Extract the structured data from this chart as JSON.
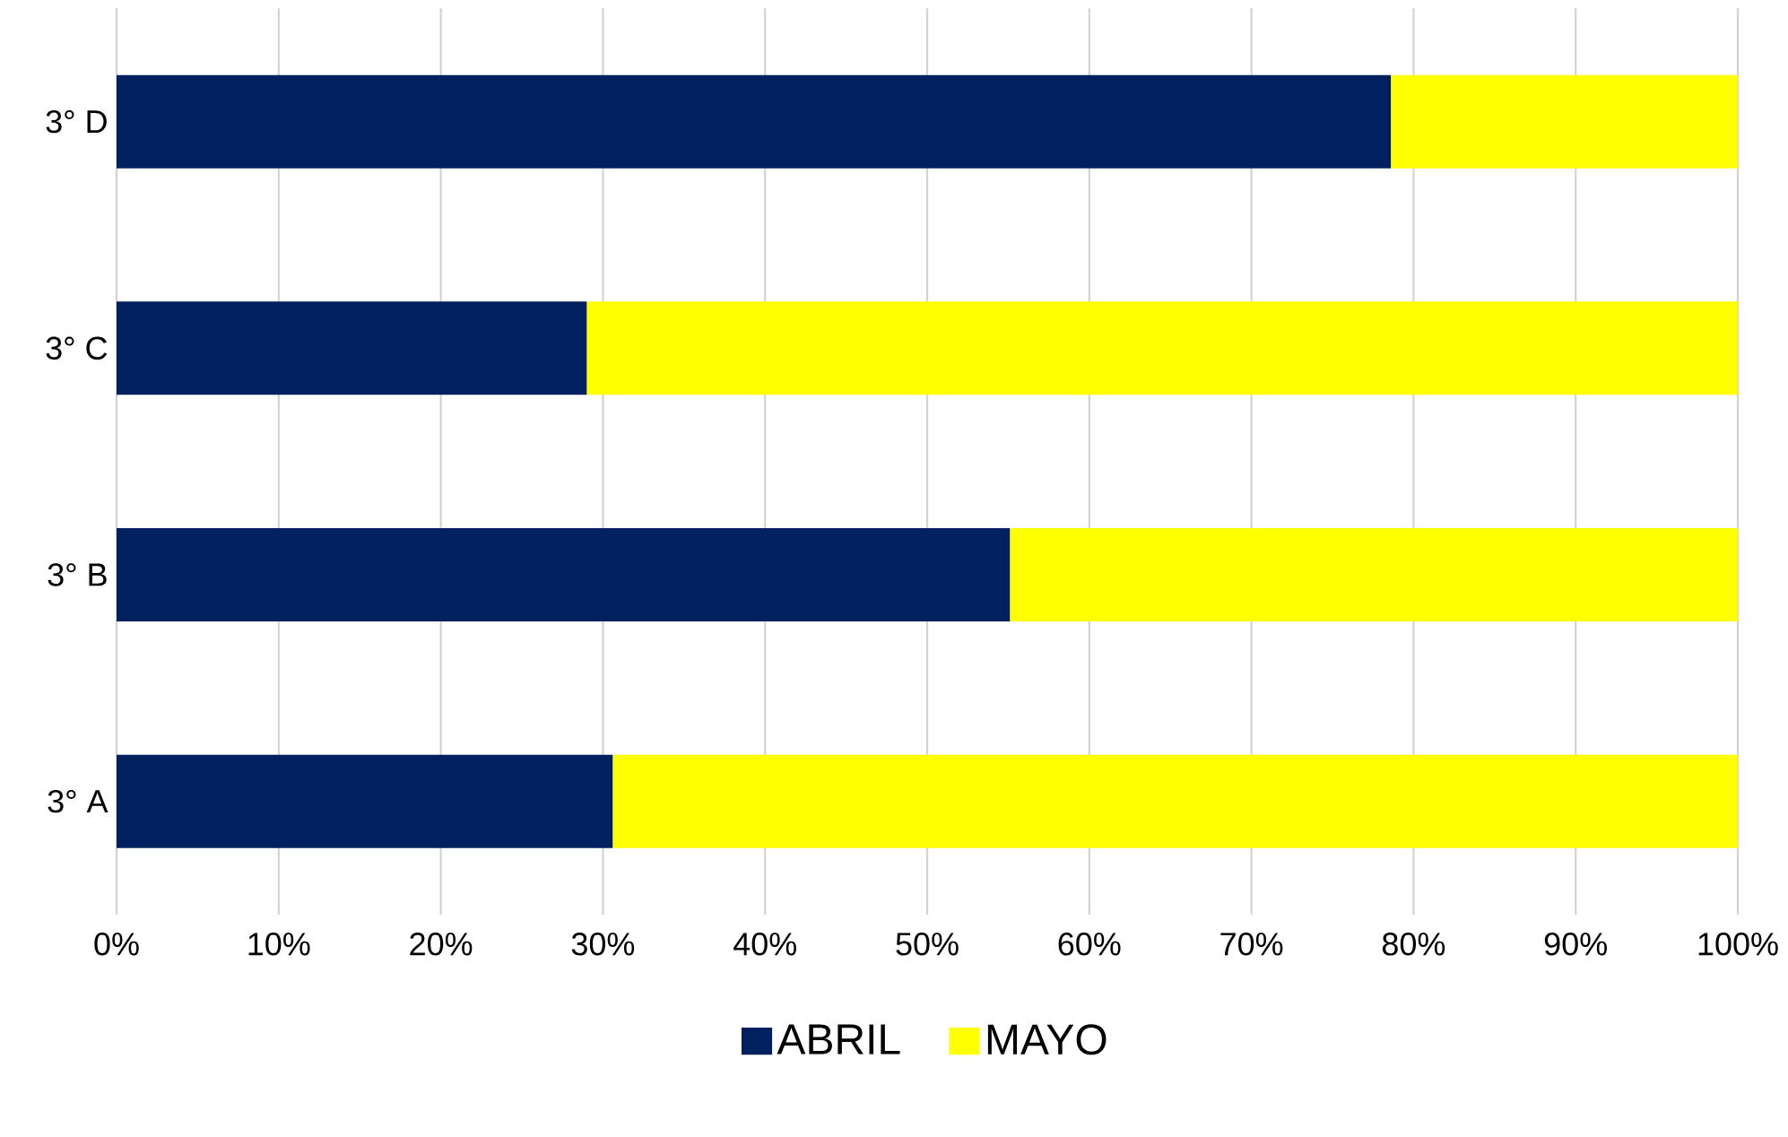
{
  "chart_data": {
    "type": "bar",
    "orientation": "horizontal",
    "stacked": true,
    "categories": [
      "3° D",
      "3° C",
      "3° B",
      "3° A"
    ],
    "series": [
      {
        "name": "ABRIL",
        "color": "#002060",
        "values": [
          78.6,
          29.0,
          55.1,
          30.6
        ]
      },
      {
        "name": "MAYO",
        "color": "#ffff00",
        "values": [
          21.4,
          71.0,
          44.9,
          69.4
        ]
      }
    ],
    "xlim": [
      0,
      100
    ],
    "xticks": [
      {
        "value": 0,
        "label": "0%"
      },
      {
        "value": 10,
        "label": "10%"
      },
      {
        "value": 20,
        "label": "20%"
      },
      {
        "value": 30,
        "label": "30%"
      },
      {
        "value": 40,
        "label": "40%"
      },
      {
        "value": 50,
        "label": "50%"
      },
      {
        "value": 60,
        "label": "60%"
      },
      {
        "value": 70,
        "label": "70%"
      },
      {
        "value": 80,
        "label": "80%"
      },
      {
        "value": 90,
        "label": "90%"
      },
      {
        "value": 100,
        "label": "100%"
      }
    ],
    "grid": "x",
    "legend": "bottom"
  }
}
